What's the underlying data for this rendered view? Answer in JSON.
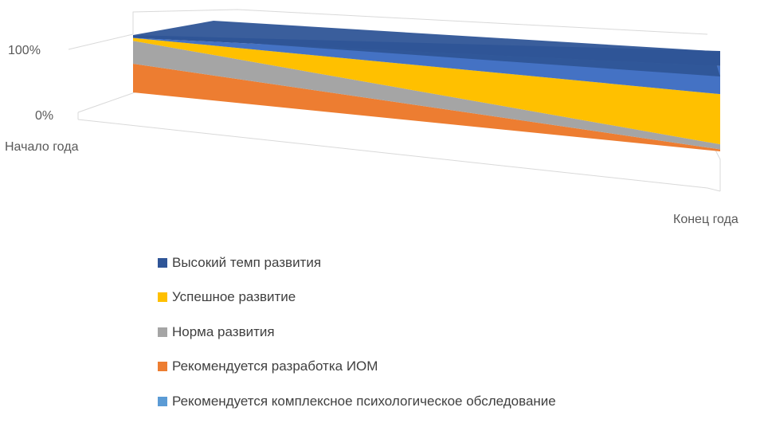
{
  "chart_data": {
    "type": "area",
    "stacked": "percent",
    "view": "3d",
    "categories": [
      "Начало года",
      "Конец года"
    ],
    "y_ticks": [
      "0%",
      "100%"
    ],
    "series": [
      {
        "name": "Высокий темп развития",
        "color": "#2F5597",
        "values": [
          5,
          15
        ]
      },
      {
        "name": "Успешное развитие",
        "color": "#FFC000",
        "values": [
          5,
          50
        ]
      },
      {
        "name": "Норма развития",
        "color": "#A5A5A5",
        "values": [
          40,
          5
        ]
      },
      {
        "name": "Рекомендуется разработка ИОМ",
        "color": "#ED7D31",
        "values": [
          50,
          2
        ]
      },
      {
        "name": "Рекомендуется комплексное психологическое обследование",
        "color": "#4472C4",
        "values": [
          0,
          28
        ]
      }
    ],
    "legend_position": "bottom"
  }
}
